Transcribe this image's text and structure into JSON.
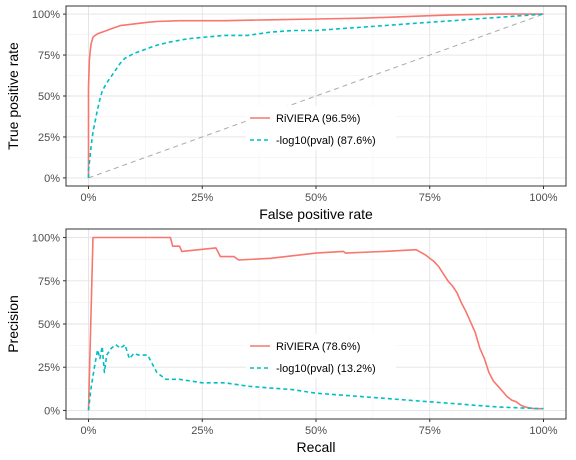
{
  "chart_data": [
    {
      "type": "line",
      "xlabel": "False positive rate",
      "ylabel": "True positive rate",
      "xlim": [
        0,
        1
      ],
      "ylim": [
        0,
        1
      ],
      "x_ticks": [
        "0%",
        "25%",
        "50%",
        "75%",
        "100%"
      ],
      "y_ticks": [
        "0%",
        "25%",
        "50%",
        "75%",
        "100%"
      ],
      "grid": true,
      "legend_position": "center",
      "reference_line": {
        "x": [
          0,
          1
        ],
        "y": [
          0,
          1
        ],
        "color": "#aaaaaa",
        "style": "dashed"
      },
      "series": [
        {
          "name": "RiVIERA (96.5%)",
          "color": "#f8766d",
          "style": "solid",
          "x": [
            0,
            0,
            0.002,
            0.004,
            0.006,
            0.008,
            0.01,
            0.015,
            0.02,
            0.03,
            0.04,
            0.05,
            0.07,
            0.1,
            0.13,
            0.15,
            0.2,
            0.3,
            0.4,
            0.5,
            0.6,
            0.7,
            0.75,
            0.8,
            0.9,
            1.0
          ],
          "y": [
            0,
            0.55,
            0.72,
            0.78,
            0.82,
            0.84,
            0.86,
            0.87,
            0.88,
            0.89,
            0.9,
            0.91,
            0.93,
            0.94,
            0.95,
            0.955,
            0.96,
            0.96,
            0.965,
            0.97,
            0.975,
            0.985,
            0.99,
            0.995,
            1.0,
            1.0
          ]
        },
        {
          "name": "-log10(pval) (87.6%)",
          "color": "#00bfc4",
          "style": "dashed",
          "x": [
            0,
            0,
            0.003,
            0.006,
            0.01,
            0.015,
            0.02,
            0.025,
            0.03,
            0.04,
            0.05,
            0.06,
            0.07,
            0.08,
            0.1,
            0.12,
            0.15,
            0.18,
            0.22,
            0.26,
            0.3,
            0.35,
            0.4,
            0.45,
            0.5,
            0.55,
            0.6,
            0.65,
            0.7,
            0.75,
            0.8,
            0.85,
            0.9,
            0.95,
            1.0
          ],
          "y": [
            0,
            0.05,
            0.12,
            0.2,
            0.28,
            0.35,
            0.42,
            0.48,
            0.53,
            0.58,
            0.62,
            0.66,
            0.7,
            0.73,
            0.76,
            0.78,
            0.81,
            0.83,
            0.85,
            0.86,
            0.87,
            0.87,
            0.89,
            0.9,
            0.9,
            0.91,
            0.92,
            0.93,
            0.94,
            0.95,
            0.96,
            0.97,
            0.98,
            0.99,
            1.0
          ]
        }
      ]
    },
    {
      "type": "line",
      "xlabel": "Recall",
      "ylabel": "Precision",
      "xlim": [
        0,
        1
      ],
      "ylim": [
        0,
        1
      ],
      "x_ticks": [
        "0%",
        "25%",
        "50%",
        "75%",
        "100%"
      ],
      "y_ticks": [
        "0%",
        "25%",
        "50%",
        "75%",
        "100%"
      ],
      "grid": true,
      "legend_position": "center",
      "series": [
        {
          "name": "RiVIERA (78.6%)",
          "color": "#f8766d",
          "style": "solid",
          "x": [
            0,
            0.01,
            0.02,
            0.18,
            0.185,
            0.2,
            0.205,
            0.28,
            0.29,
            0.32,
            0.33,
            0.4,
            0.5,
            0.56,
            0.565,
            0.65,
            0.72,
            0.74,
            0.76,
            0.77,
            0.78,
            0.79,
            0.8,
            0.81,
            0.82,
            0.83,
            0.84,
            0.85,
            0.86,
            0.87,
            0.88,
            0.89,
            0.9,
            0.91,
            0.92,
            0.93,
            0.94,
            0.95,
            0.96,
            0.97,
            0.98,
            1.0
          ],
          "y": [
            0,
            1.0,
            1.0,
            1.0,
            0.95,
            0.95,
            0.92,
            0.94,
            0.89,
            0.89,
            0.87,
            0.88,
            0.91,
            0.92,
            0.91,
            0.92,
            0.93,
            0.9,
            0.86,
            0.83,
            0.79,
            0.75,
            0.72,
            0.68,
            0.62,
            0.57,
            0.51,
            0.45,
            0.36,
            0.3,
            0.22,
            0.17,
            0.14,
            0.11,
            0.08,
            0.06,
            0.05,
            0.03,
            0.02,
            0.015,
            0.01,
            0.01
          ]
        },
        {
          "name": "-log10(pval) (13.2%)",
          "color": "#00bfc4",
          "style": "dashed",
          "x": [
            0,
            0.005,
            0.01,
            0.015,
            0.02,
            0.025,
            0.03,
            0.035,
            0.04,
            0.05,
            0.06,
            0.07,
            0.08,
            0.09,
            0.1,
            0.11,
            0.13,
            0.15,
            0.16,
            0.17,
            0.2,
            0.25,
            0.3,
            0.35,
            0.4,
            0.45,
            0.5,
            0.55,
            0.6,
            0.65,
            0.7,
            0.75,
            0.8,
            0.85,
            0.9,
            0.95,
            1.0
          ],
          "y": [
            0,
            0.12,
            0.2,
            0.28,
            0.35,
            0.3,
            0.37,
            0.22,
            0.32,
            0.36,
            0.38,
            0.36,
            0.38,
            0.3,
            0.33,
            0.32,
            0.32,
            0.22,
            0.2,
            0.18,
            0.18,
            0.16,
            0.16,
            0.14,
            0.13,
            0.12,
            0.1,
            0.09,
            0.08,
            0.07,
            0.06,
            0.05,
            0.04,
            0.03,
            0.02,
            0.015,
            0.01
          ]
        }
      ]
    }
  ]
}
